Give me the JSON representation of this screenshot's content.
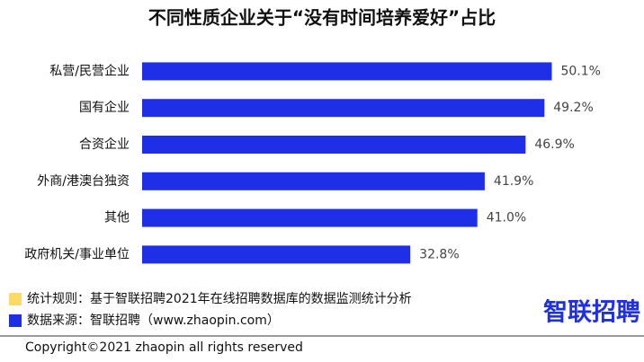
{
  "chart_data": {
    "type": "hbar",
    "title": "不同性质企业关于“没有时间培养爱好”占比",
    "categories": [
      "私营/民营企业",
      "国有企业",
      "合资企业",
      "外商/港澳台独资",
      "其他",
      "政府机关/事业单位"
    ],
    "values": [
      50.1,
      49.2,
      46.9,
      41.9,
      41.0,
      32.8
    ],
    "value_labels": [
      "50.1%",
      "49.2%",
      "46.9%",
      "41.9%",
      "41.0%",
      "32.8%"
    ],
    "color": "#1f2fe8",
    "xlim": [
      0,
      55
    ]
  },
  "notes": [
    {
      "text": "统计规则：基于智联招聘2021年在线招聘数据库的数据监测统计分析",
      "color": "#ffd966"
    },
    {
      "text": "数据来源：智联招聘（www.zhaopin.com）",
      "color": "#1f2fe8"
    }
  ],
  "logo": "智联招聘",
  "copyright": "Copyright©2021 zhaopin all rights reserved"
}
